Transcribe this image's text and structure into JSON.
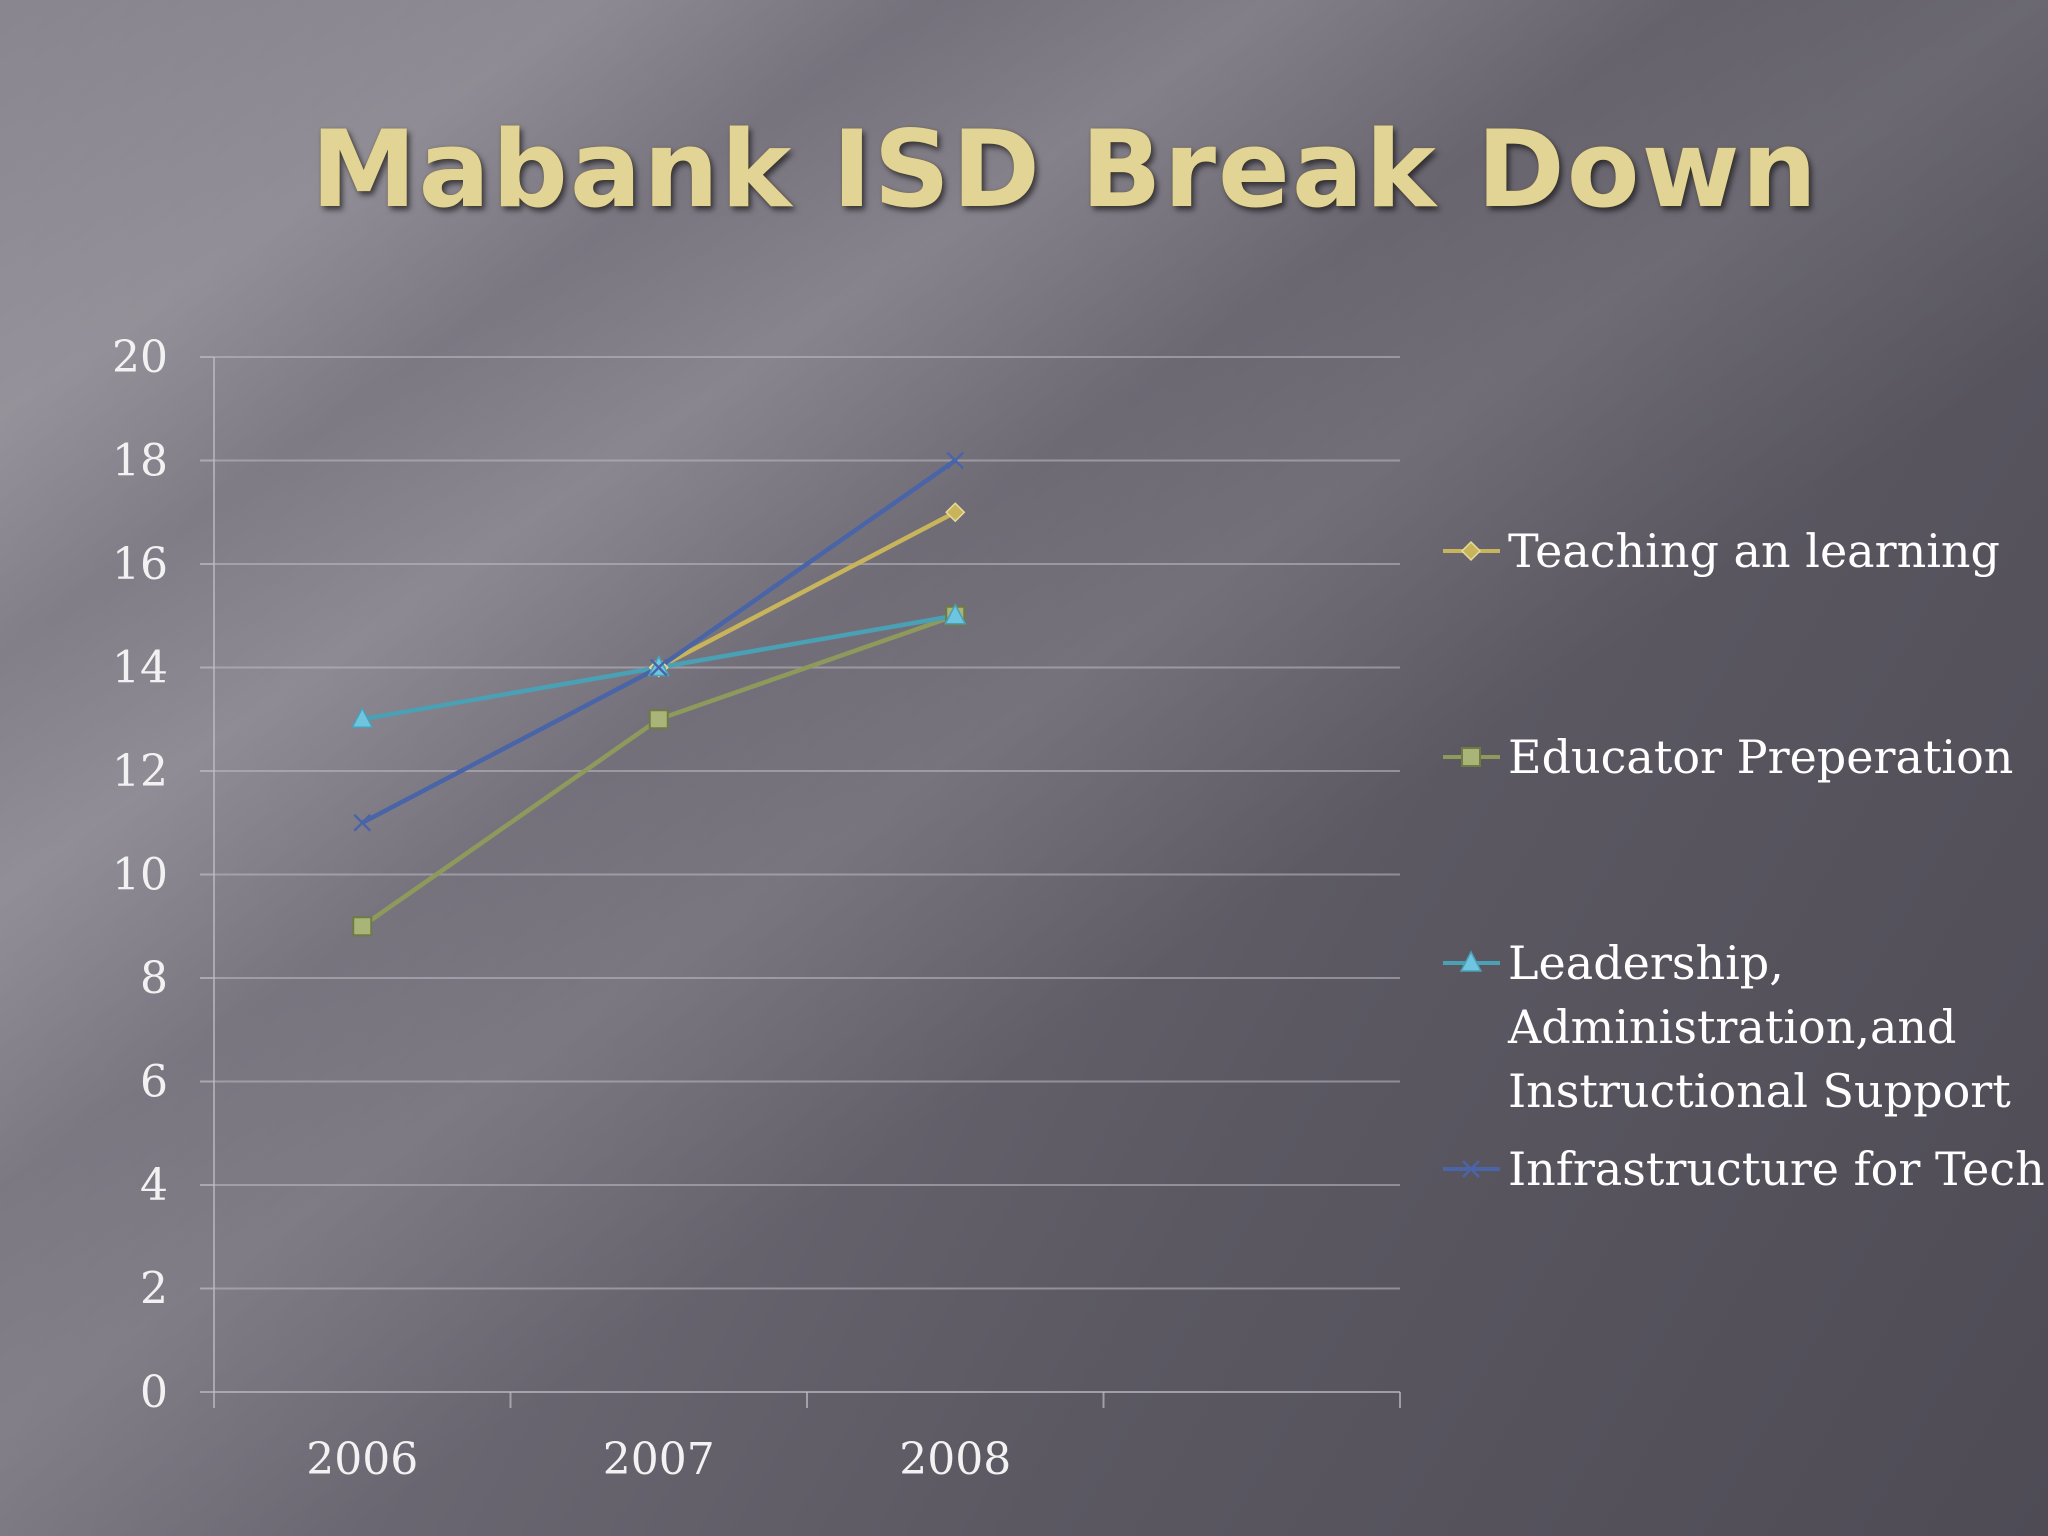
{
  "slide": {
    "title": "Mabank ISD Break Down"
  },
  "chart_data": {
    "type": "line",
    "categories": [
      "2006",
      "2007",
      "2008"
    ],
    "ylim": [
      0,
      20
    ],
    "yticks": [
      0,
      2,
      4,
      6,
      8,
      10,
      12,
      14,
      16,
      18,
      20
    ],
    "grid": true,
    "legend_position": "right",
    "series": [
      {
        "name": "Teaching an learning",
        "values": [
          null,
          14,
          17
        ],
        "color": "#c8b45a",
        "marker": "diamond"
      },
      {
        "name": "Educator Preperation",
        "values": [
          9,
          13,
          15
        ],
        "color": "#8e9a5c",
        "marker": "square"
      },
      {
        "name": "Leadership, Administration,and Instructional Support",
        "legend_lines": [
          "Leadership,",
          "Administration,and",
          "Instructional Support"
        ],
        "values": [
          13,
          14,
          15
        ],
        "color": "#4aa0b4",
        "marker": "triangle"
      },
      {
        "name": "Infrastructure for Tech",
        "values": [
          11,
          14,
          18
        ],
        "color": "#4a64a8",
        "marker": "x"
      }
    ]
  }
}
